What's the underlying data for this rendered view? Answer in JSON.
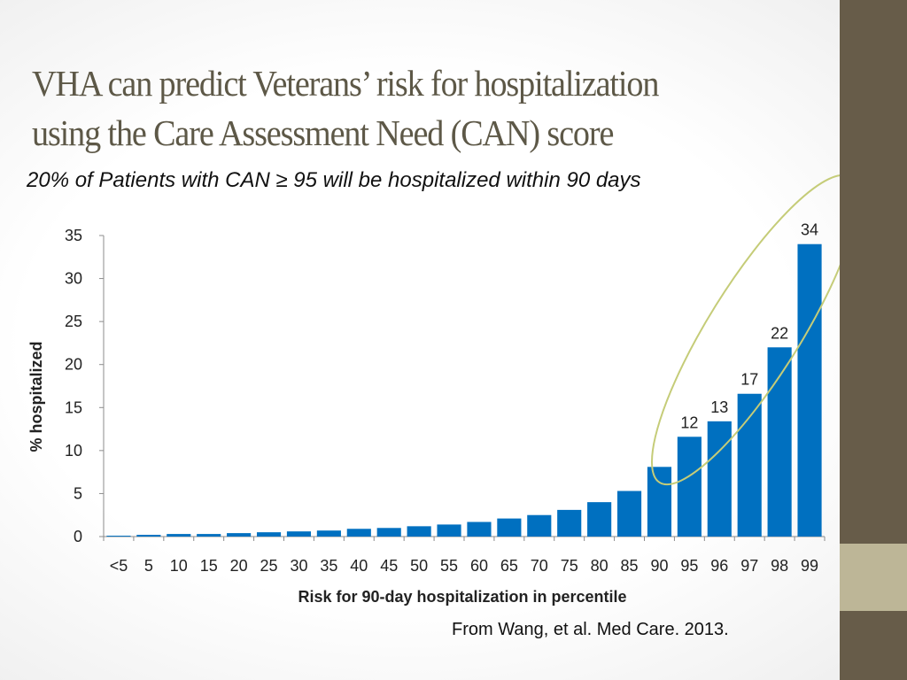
{
  "slide": {
    "title_line1": "VHA can predict Veterans’ risk for hospitalization",
    "title_line2": "using the Care Assessment Need (CAN) score",
    "subtitle": "20% of Patients with CAN ≥ 95 will be hospitalized within 90 days",
    "citation": "From Wang, et al. Med Care. 2013."
  },
  "colors": {
    "bar": "#0070c0",
    "title": "#5d5847",
    "side_bar": "#675c49",
    "side_bar_accent": "#bdb697",
    "highlight_ellipse": "#c5cc78"
  },
  "chart_data": {
    "type": "bar",
    "title": "",
    "xlabel": "Risk for 90-day hospitalization in percentile",
    "ylabel": "% hospitalized",
    "ylim": [
      0,
      35
    ],
    "yticks": [
      0,
      5,
      10,
      15,
      20,
      25,
      30,
      35
    ],
    "grid": false,
    "categories": [
      "<5",
      "5",
      "10",
      "15",
      "20",
      "25",
      "30",
      "35",
      "40",
      "45",
      "50",
      "55",
      "60",
      "65",
      "70",
      "75",
      "80",
      "85",
      "90",
      "95",
      "96",
      "97",
      "98",
      "99"
    ],
    "values": [
      0.1,
      0.2,
      0.3,
      0.3,
      0.4,
      0.5,
      0.6,
      0.7,
      0.9,
      1.0,
      1.2,
      1.4,
      1.7,
      2.1,
      2.5,
      3.1,
      4.0,
      5.3,
      8.1,
      11.6,
      13.4,
      16.6,
      22.0,
      34.0
    ],
    "data_labels": [
      {
        "category": "95",
        "text": "12"
      },
      {
        "category": "96",
        "text": "13"
      },
      {
        "category": "97",
        "text": "17"
      },
      {
        "category": "98",
        "text": "22"
      },
      {
        "category": "99",
        "text": "34"
      }
    ],
    "highlight": {
      "shape": "ellipse",
      "categories": [
        "95",
        "96",
        "97",
        "98",
        "99"
      ]
    }
  }
}
